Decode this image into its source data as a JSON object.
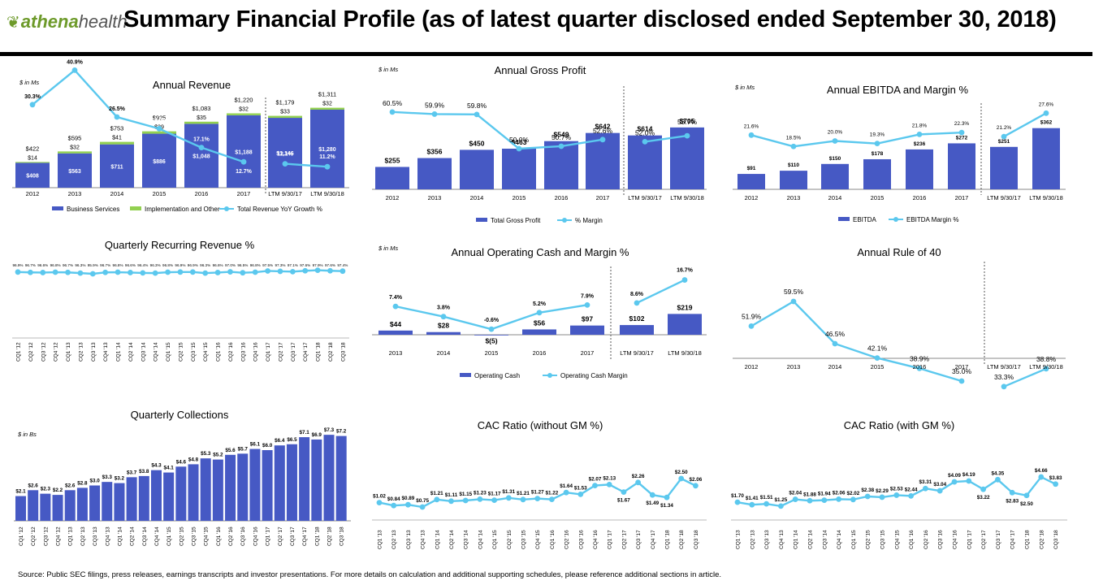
{
  "header": {
    "logo_text_a": "athena",
    "logo_text_b": "health",
    "title": "Summary Financial Profile (as of latest quarter disclosed ended September 30, 2018)"
  },
  "footnote": "Source: Public SEC filings, press releases, earnings transcripts and investor presentations. For more details on calculation and additional supporting schedules, please reference additional sections in article.",
  "colors": {
    "bar": "#4659c4",
    "line": "#5bc8ee",
    "impl": "#92d050"
  },
  "chart_data": [
    {
      "id": "annual-revenue",
      "type": "bar",
      "title": "Annual Revenue",
      "unit_note": "$ in Ms",
      "categories": [
        "2012",
        "2013",
        "2014",
        "2015",
        "2016",
        "2017",
        "LTM 9/30/17",
        "LTM 9/30/18"
      ],
      "series": [
        {
          "name": "Business Services",
          "values": [
            408,
            563,
            711,
            886,
            1048,
            1188,
            1146,
            1280
          ],
          "labels": [
            "$408",
            "$563",
            "$711",
            "$886",
            "$1,048",
            "$1,188",
            "$1,146",
            "$1,280"
          ]
        },
        {
          "name": "Implementation and Other",
          "values": [
            14,
            32,
            41,
            39,
            35,
            32,
            33,
            32
          ],
          "labels": [
            "$14",
            "$32",
            "$41",
            "$39",
            "$35",
            "$32",
            "$33",
            "$32"
          ]
        }
      ],
      "totals": [
        "$422",
        "$595",
        "$753",
        "$925",
        "$1,083",
        "$1,220",
        "$1,179",
        "$1,311"
      ],
      "line": {
        "name": "Total Revenue YoY Growth %",
        "values": [
          30.3,
          40.9,
          26.5,
          22.9,
          17.1,
          12.7,
          12.1,
          11.2
        ],
        "labels": [
          "30.3%",
          "40.9%",
          "26.5%",
          "22.9%",
          "17.1%",
          "12.7%",
          "12.1%",
          "11.2%"
        ]
      },
      "legend": [
        "Business Services",
        "Implementation and Other",
        "Total Revenue YoY Growth %"
      ]
    },
    {
      "id": "annual-gross-profit",
      "type": "bar",
      "title": "Annual Gross Profit",
      "unit_note": "$ in Ms",
      "categories": [
        "2012",
        "2013",
        "2014",
        "2015",
        "2016",
        "2017",
        "LTM 9/30/17",
        "LTM 9/30/18"
      ],
      "series": [
        {
          "name": "Total Gross Profit",
          "values": [
            255,
            356,
            450,
            463,
            549,
            642,
            614,
            705
          ],
          "labels": [
            "$255",
            "$356",
            "$450",
            "$463",
            "$549",
            "$642",
            "$614",
            "$705"
          ]
        }
      ],
      "line": {
        "name": "% Margin",
        "values": [
          60.5,
          59.9,
          59.8,
          50.0,
          50.7,
          52.6,
          52.0,
          53.7
        ],
        "labels": [
          "60.5%",
          "59.9%",
          "59.8%",
          "50.0%",
          "50.7%",
          "52.6%",
          "52.0%",
          "53.7%"
        ]
      },
      "legend": [
        "Total Gross Profit",
        "% Margin"
      ]
    },
    {
      "id": "annual-ebitda",
      "type": "bar",
      "title": "Annual EBITDA and Margin %",
      "unit_note": "$ in Ms",
      "categories": [
        "2012",
        "2013",
        "2014",
        "2015",
        "2016",
        "2017",
        "LTM 9/30/17",
        "LTM 9/30/18"
      ],
      "series": [
        {
          "name": "EBITDA",
          "values": [
            91,
            110,
            150,
            178,
            236,
            272,
            251,
            362
          ],
          "labels": [
            "$91",
            "$110",
            "$150",
            "$178",
            "$236",
            "$272",
            "$251",
            "$362"
          ]
        }
      ],
      "line": {
        "name": "EBITDA Margin %",
        "values": [
          21.6,
          18.5,
          20.0,
          19.3,
          21.8,
          22.3,
          21.2,
          27.6
        ],
        "labels": [
          "21.6%",
          "18.5%",
          "20.0%",
          "19.3%",
          "21.8%",
          "22.3%",
          "21.2%",
          "27.6%"
        ]
      },
      "legend": [
        "EBITDA",
        "EBITDA Margin %"
      ]
    },
    {
      "id": "quarterly-recurring-revenue",
      "type": "line",
      "title": "Quarterly Recurring Revenue %",
      "categories": [
        "CQ1 '12",
        "CQ2 '12",
        "CQ3 '12",
        "CQ4 '12",
        "CQ1 '13",
        "CQ2 '13",
        "CQ3 '13",
        "CQ4 '13",
        "CQ1 '14",
        "CQ2 '14",
        "CQ3 '14",
        "CQ4 '14",
        "CQ1 '15",
        "CQ2 '15",
        "CQ3 '15",
        "CQ4 '15",
        "CQ1 '16",
        "CQ2 '16",
        "CQ3 '16",
        "CQ4 '16",
        "CQ1 '17",
        "CQ2 '17",
        "CQ3 '17",
        "CQ4 '17",
        "CQ1 '18",
        "CQ2 '18",
        "CQ3 '18"
      ],
      "values": [
        96.9,
        96.7,
        96.6,
        96.8,
        96.7,
        96.3,
        95.9,
        96.7,
        96.8,
        96.6,
        96.4,
        96.3,
        96.8,
        96.9,
        96.9,
        96.3,
        96.6,
        97.0,
        96.5,
        96.8,
        97.5,
        97.3,
        97.1,
        97.6,
        97.9,
        97.6,
        97.4
      ],
      "labels": [
        "96.9%",
        "96.7%",
        "96.6%",
        "96.8%",
        "96.7%",
        "96.3%",
        "95.9%",
        "96.7%",
        "96.8%",
        "96.6%",
        "96.4%",
        "96.3%",
        "96.8%",
        "96.9%",
        "96.9%",
        "96.3%",
        "96.6%",
        "97.0%",
        "96.5%",
        "96.8%",
        "97.5%",
        "97.3%",
        "97.1%",
        "97.6%",
        "97.9%",
        "97.6%",
        "97.4%"
      ]
    },
    {
      "id": "operating-cash",
      "type": "bar",
      "title": "Annual Operating Cash and Margin %",
      "unit_note": "$ in Ms",
      "categories": [
        "2013",
        "2014",
        "2015",
        "2016",
        "2017",
        "LTM 9/30/17",
        "LTM 9/30/18"
      ],
      "series": [
        {
          "name": "Operating Cash",
          "values": [
            44,
            28,
            -5,
            56,
            97,
            102,
            219
          ],
          "labels": [
            "$44",
            "$28",
            "$(5)",
            "$56",
            "$97",
            "$102",
            "$219"
          ]
        }
      ],
      "line": {
        "name": "Operating Cash Margin",
        "values": [
          7.4,
          3.8,
          -0.6,
          5.2,
          7.9,
          8.6,
          16.7
        ],
        "labels": [
          "7.4%",
          "3.8%",
          "-0.6%",
          "5.2%",
          "7.9%",
          "8.6%",
          "16.7%"
        ]
      },
      "legend": [
        "Operating Cash",
        "Operating Cash Margin"
      ]
    },
    {
      "id": "rule-of-40",
      "type": "line",
      "title": "Annual Rule of 40",
      "categories": [
        "2012",
        "2013",
        "2014",
        "2015",
        "2016",
        "2017",
        "LTM 9/30/17",
        "LTM 9/30/18"
      ],
      "values": [
        51.9,
        59.5,
        46.5,
        42.1,
        38.9,
        35.0,
        33.3,
        38.8
      ],
      "labels": [
        "51.9%",
        "59.5%",
        "46.5%",
        "42.1%",
        "38.9%",
        "35.0%",
        "33.3%",
        "38.8%"
      ]
    },
    {
      "id": "quarterly-collections",
      "type": "bar",
      "title": "Quarterly Collections",
      "unit_note": "$ in Bs",
      "categories": [
        "CQ1 '12",
        "CQ2 '12",
        "CQ3 '12",
        "CQ4 '12",
        "CQ1 '13",
        "CQ2 '13",
        "CQ3 '13",
        "CQ4 '13",
        "CQ1 '14",
        "CQ2 '14",
        "CQ3 '14",
        "CQ4 '14",
        "CQ1 '15",
        "CQ2 '15",
        "CQ3 '15",
        "CQ4 '15",
        "CQ1 '16",
        "CQ2 '16",
        "CQ3 '16",
        "CQ4 '16",
        "CQ1 '17",
        "CQ2 '17",
        "CQ3 '17",
        "CQ4 '17",
        "CQ1 '18",
        "CQ2 '18",
        "CQ3 '18"
      ],
      "values": [
        2.1,
        2.6,
        2.3,
        2.2,
        2.6,
        2.8,
        3.0,
        3.3,
        3.2,
        3.7,
        3.8,
        4.3,
        4.1,
        4.6,
        4.8,
        5.3,
        5.2,
        5.6,
        5.7,
        6.1,
        6.0,
        6.4,
        6.5,
        7.1,
        6.9,
        7.3,
        7.2
      ],
      "labels": [
        "$2.1",
        "$2.6",
        "$2.3",
        "$2.2",
        "$2.6",
        "$2.8",
        "$3.0",
        "$3.3",
        "$3.2",
        "$3.7",
        "$3.8",
        "$4.3",
        "$4.1",
        "$4.6",
        "$4.8",
        "$5.3",
        "$5.2",
        "$5.6",
        "$5.7",
        "$6.1",
        "$6.0",
        "$6.4",
        "$6.5",
        "$7.1",
        "$6.9",
        "$7.3",
        "$7.2"
      ]
    },
    {
      "id": "cac-without-gm",
      "type": "line",
      "title": "CAC Ratio (without GM %)",
      "categories": [
        "CQ1 '13",
        "CQ2 '13",
        "CQ3 '13",
        "CQ4 '13",
        "CQ1 '14",
        "CQ2 '14",
        "CQ3 '14",
        "CQ4 '14",
        "CQ1 '15",
        "CQ2 '15",
        "CQ3 '15",
        "CQ4 '15",
        "CQ1 '16",
        "CQ2 '16",
        "CQ3 '16",
        "CQ4 '16",
        "CQ1 '17",
        "CQ2 '17",
        "CQ3 '17",
        "CQ4 '17",
        "CQ1 '18",
        "CQ2 '18",
        "CQ3 '18"
      ],
      "values": [
        1.02,
        0.84,
        0.89,
        0.75,
        1.21,
        1.11,
        1.15,
        1.23,
        1.17,
        1.31,
        1.21,
        1.27,
        1.22,
        1.64,
        1.53,
        2.07,
        2.13,
        1.67,
        2.26,
        1.49,
        1.34,
        2.5,
        2.06
      ],
      "labels": [
        "$1.02",
        "$0.84",
        "$0.89",
        "$0.75",
        "$1.21",
        "$1.11",
        "$1.15",
        "$1.23",
        "$1.17",
        "$1.31",
        "$1.21",
        "$1.27",
        "$1.22",
        "$1.64",
        "$1.53",
        "$2.07",
        "$2.13",
        "$1.67",
        "$2.26",
        "$1.49",
        "$1.34",
        "$2.50",
        "$2.06"
      ]
    },
    {
      "id": "cac-with-gm",
      "type": "line",
      "title": "CAC Ratio (with GM %)",
      "categories": [
        "CQ1 '13",
        "CQ2 '13",
        "CQ3 '13",
        "CQ4 '13",
        "CQ1 '14",
        "CQ2 '14",
        "CQ3 '14",
        "CQ4 '14",
        "CQ1 '15",
        "CQ2 '15",
        "CQ3 '15",
        "CQ4 '15",
        "CQ1 '16",
        "CQ2 '16",
        "CQ3 '16",
        "CQ4 '16",
        "CQ1 '17",
        "CQ2 '17",
        "CQ3 '17",
        "CQ4 '17",
        "CQ1 '18",
        "CQ2 '18",
        "CQ3 '18"
      ],
      "values": [
        1.7,
        1.41,
        1.51,
        1.25,
        2.04,
        1.88,
        1.94,
        2.06,
        2.02,
        2.38,
        2.29,
        2.53,
        2.44,
        3.31,
        3.04,
        4.09,
        4.19,
        3.22,
        4.35,
        2.83,
        2.5,
        4.66,
        3.83
      ],
      "labels": [
        "$1.70",
        "$1.41",
        "$1.51",
        "$1.25",
        "$2.04",
        "$1.88",
        "$1.94",
        "$2.06",
        "$2.02",
        "$2.38",
        "$2.29",
        "$2.53",
        "$2.44",
        "$3.31",
        "$3.04",
        "$4.09",
        "$4.19",
        "$3.22",
        "$4.35",
        "$2.83",
        "$2.50",
        "$4.66",
        "$3.83"
      ]
    }
  ]
}
